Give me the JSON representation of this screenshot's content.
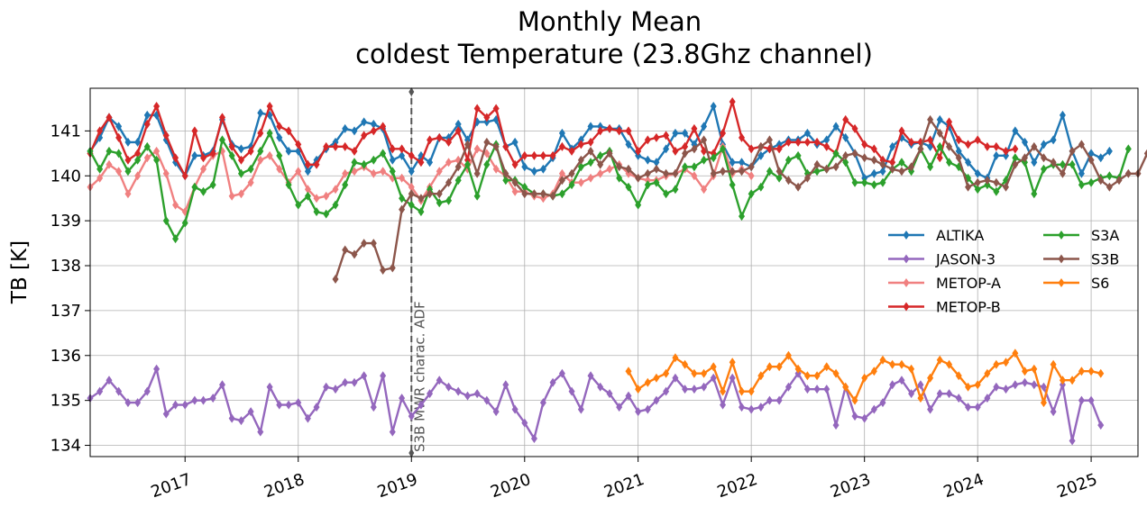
{
  "chart_data": {
    "type": "line",
    "title": [
      "Monthly Mean",
      "coldest Temperature (23.8Ghz channel)"
    ],
    "xlabel": "",
    "ylabel": "TB [K]",
    "ylim": [
      133.75,
      141.95
    ],
    "xlim": [
      "2016-03-01",
      "2025-06-01"
    ],
    "grid": true,
    "yticks": [
      134,
      135,
      136,
      137,
      138,
      139,
      140,
      141
    ],
    "xticks": [
      "2017",
      "2018",
      "2019",
      "2020",
      "2021",
      "2022",
      "2023",
      "2024",
      "2025"
    ],
    "legend": {
      "placement": "right",
      "columns": 2
    },
    "annotation": {
      "label": "S3B MWR charac. ADF",
      "x": "2019-01-01"
    },
    "series": [
      {
        "name": "ALTIKA",
        "color": "#1f77b4",
        "marker": "diamond",
        "start": "2016-03",
        "values": [
          140.55,
          140.85,
          141.3,
          141.1,
          140.75,
          140.75,
          141.35,
          141.35,
          140.8,
          140.3,
          140.0,
          140.45,
          140.45,
          140.55,
          141.25,
          140.7,
          140.6,
          140.65,
          141.4,
          141.35,
          140.85,
          140.55,
          140.55,
          140.1,
          140.35,
          140.6,
          140.75,
          141.05,
          141.0,
          141.2,
          141.15,
          141.05,
          140.35,
          140.45,
          140.1,
          140.45,
          140.3,
          140.85,
          140.85,
          141.15,
          140.8,
          141.2,
          141.2,
          141.25,
          140.65,
          140.75,
          140.2,
          140.1,
          140.15,
          140.4,
          140.95,
          140.6,
          140.8,
          141.1,
          141.1,
          141.05,
          141.05,
          140.7,
          140.45,
          140.35,
          140.3,
          140.6,
          140.95,
          140.95,
          140.7,
          141.1,
          141.55,
          140.7,
          140.3,
          140.3,
          140.2,
          140.45,
          140.6,
          140.7,
          140.8,
          140.8,
          140.95,
          140.7,
          140.8,
          141.1,
          140.85,
          140.5,
          139.95,
          140.05,
          140.1,
          140.65,
          140.85,
          140.7,
          140.75,
          140.65,
          141.25,
          141.1,
          140.55,
          140.3,
          140.05,
          139.95,
          140.45,
          140.45,
          141.0,
          140.75,
          140.3,
          140.7,
          140.8,
          141.35,
          140.55,
          140.05,
          140.5,
          140.4,
          140.55
        ]
      },
      {
        "name": "JASON-3",
        "color": "#9467bd",
        "marker": "diamond",
        "start": "2016-03",
        "values": [
          135.05,
          135.2,
          135.45,
          135.2,
          134.95,
          134.95,
          135.2,
          135.7,
          134.7,
          134.9,
          134.9,
          135.0,
          135.0,
          135.05,
          135.35,
          134.6,
          134.55,
          134.75,
          134.3,
          135.3,
          134.9,
          134.9,
          134.95,
          134.6,
          134.85,
          135.3,
          135.25,
          135.4,
          135.4,
          135.55,
          134.85,
          135.55,
          134.3,
          135.05,
          134.65,
          134.9,
          135.15,
          135.45,
          135.3,
          135.2,
          135.1,
          135.15,
          135.0,
          134.75,
          135.35,
          134.8,
          134.5,
          134.15,
          134.95,
          135.4,
          135.6,
          135.2,
          134.8,
          135.55,
          135.3,
          135.15,
          134.85,
          135.1,
          134.75,
          134.8,
          135.0,
          135.2,
          135.5,
          135.25,
          135.25,
          135.3,
          135.5,
          134.9,
          135.5,
          134.85,
          134.8,
          134.85,
          135.0,
          135.0,
          135.3,
          135.6,
          135.25,
          135.25,
          135.25,
          134.45,
          135.3,
          134.65,
          134.6,
          134.8,
          134.95,
          135.35,
          135.45,
          135.15,
          135.35,
          134.8,
          135.15,
          135.15,
          135.05,
          134.85,
          134.85,
          135.05,
          135.3,
          135.25,
          135.35,
          135.4,
          135.35,
          135.3,
          134.75,
          135.35,
          134.1,
          135.0,
          135.0,
          134.45
        ]
      },
      {
        "name": "METOP-A",
        "color": "#f08080",
        "marker": "diamond",
        "start": "2016-03",
        "values": [
          139.75,
          139.95,
          140.25,
          140.1,
          139.6,
          140.0,
          140.4,
          140.55,
          140.05,
          139.35,
          139.2,
          139.75,
          140.15,
          140.45,
          140.55,
          139.55,
          139.6,
          139.85,
          140.35,
          140.45,
          140.15,
          139.85,
          140.1,
          139.7,
          139.5,
          139.55,
          139.7,
          140.05,
          140.1,
          140.2,
          140.05,
          140.1,
          139.95,
          139.95,
          139.75,
          139.45,
          139.75,
          140.1,
          140.3,
          140.35,
          140.15,
          140.6,
          140.5,
          140.15,
          140.0,
          139.65,
          139.65,
          139.55,
          139.5,
          139.6,
          140.05,
          139.85,
          139.85,
          139.95,
          140.05,
          140.15,
          140.25,
          140.05,
          139.95,
          139.9,
          139.9,
          140.0,
          140.05,
          140.15,
          140.0,
          139.7,
          140.0,
          140.65,
          140.05,
          140.15,
          140.0
        ]
      },
      {
        "name": "METOP-B",
        "color": "#d62728",
        "marker": "diamond",
        "start": "2016-03",
        "values": [
          140.5,
          141.0,
          141.3,
          140.85,
          140.35,
          140.5,
          141.15,
          141.55,
          140.9,
          140.4,
          140.0,
          141.0,
          140.4,
          140.5,
          141.3,
          140.65,
          140.35,
          140.55,
          140.95,
          141.55,
          141.1,
          141.0,
          140.7,
          140.25,
          140.25,
          140.65,
          140.65,
          140.65,
          140.55,
          140.9,
          141.0,
          141.1,
          140.6,
          140.6,
          140.45,
          140.3,
          140.8,
          140.85,
          140.75,
          141.0,
          140.35,
          141.5,
          141.3,
          141.5,
          140.65,
          140.25,
          140.45,
          140.45,
          140.45,
          140.45,
          140.65,
          140.55,
          140.7,
          140.75,
          141.0,
          141.05,
          141.0,
          141.0,
          140.55,
          140.8,
          140.85,
          140.9,
          140.55,
          140.65,
          141.05,
          140.55,
          140.5,
          140.95,
          141.65,
          140.85,
          140.6,
          140.65,
          140.6,
          140.6,
          140.75,
          140.75,
          140.75,
          140.75,
          140.65,
          140.5,
          141.25,
          141.05,
          140.7,
          140.6,
          140.35,
          140.3,
          141.0,
          140.75,
          140.75,
          140.8,
          140.4,
          141.2,
          140.8,
          140.7,
          140.8,
          140.65,
          140.65,
          140.55,
          140.6
        ]
      },
      {
        "name": "S3A",
        "color": "#2ca02c",
        "marker": "diamond",
        "start": "2016-03",
        "values": [
          140.55,
          140.15,
          140.55,
          140.5,
          140.1,
          140.35,
          140.65,
          140.35,
          139.0,
          138.6,
          138.95,
          139.75,
          139.65,
          139.8,
          140.8,
          140.45,
          140.05,
          140.15,
          140.55,
          140.95,
          140.45,
          139.8,
          139.35,
          139.55,
          139.2,
          139.15,
          139.35,
          139.8,
          140.3,
          140.25,
          140.35,
          140.5,
          140.1,
          139.5,
          139.35,
          139.2,
          139.7,
          139.4,
          139.45,
          139.9,
          140.25,
          139.55,
          140.25,
          140.7,
          139.9,
          139.9,
          139.75,
          139.6,
          139.6,
          139.55,
          139.6,
          139.8,
          140.2,
          140.3,
          140.45,
          140.55,
          139.95,
          139.75,
          139.35,
          139.8,
          139.85,
          139.6,
          139.7,
          140.2,
          140.2,
          140.35,
          140.4,
          140.6,
          139.8,
          139.1,
          139.6,
          139.75,
          140.1,
          139.95,
          140.35,
          140.45,
          140.05,
          140.1,
          140.15,
          140.5,
          140.3,
          139.85,
          139.85,
          139.8,
          139.85,
          140.15,
          140.3,
          140.1,
          140.6,
          140.2,
          140.65,
          140.3,
          140.2,
          139.95,
          139.7,
          139.8,
          139.65,
          139.9,
          140.4,
          140.3,
          139.6,
          140.15,
          140.25,
          140.25,
          140.25,
          139.8,
          139.85,
          139.95,
          140.0,
          139.95,
          140.6
        ]
      },
      {
        "name": "S3B",
        "color": "#8c564b",
        "marker": "diamond",
        "start": "2018-05",
        "values": [
          137.7,
          138.35,
          138.25,
          138.5,
          138.5,
          137.9,
          137.95,
          139.25,
          139.6,
          139.5,
          139.6,
          139.6,
          139.85,
          140.2,
          140.7,
          140.05,
          140.75,
          140.65,
          140.05,
          139.85,
          139.6,
          139.6,
          139.6,
          139.55,
          139.9,
          140.05,
          140.35,
          140.55,
          140.25,
          140.5,
          140.2,
          140.15,
          139.95,
          140.05,
          140.15,
          140.05,
          140.05,
          140.5,
          140.6,
          140.8,
          140.05,
          140.1,
          140.1,
          140.1,
          140.2,
          140.65,
          140.8,
          140.1,
          139.9,
          139.75,
          139.95,
          140.25,
          140.15,
          140.2,
          140.45,
          140.5,
          140.4,
          140.35,
          140.25,
          140.15,
          140.1,
          140.2,
          140.6,
          141.25,
          140.95,
          140.65,
          140.4,
          139.75,
          139.85,
          139.9,
          139.85,
          139.75,
          140.25,
          140.4,
          140.65,
          140.4,
          140.3,
          140.05,
          140.55,
          140.7,
          140.35,
          139.9,
          139.75,
          139.9,
          140.05,
          140.05,
          140.5,
          140.4,
          139.95,
          140.3,
          140.5,
          140.75,
          140.25,
          139.95,
          139.9,
          139.95,
          140.4,
          140.25,
          139.95,
          140.6
        ]
      },
      {
        "name": "S6",
        "color": "#ff7f0e",
        "marker": "diamond",
        "start": "2020-12",
        "values": [
          135.65,
          135.25,
          135.4,
          135.5,
          135.6,
          135.95,
          135.8,
          135.6,
          135.6,
          135.75,
          135.2,
          135.85,
          135.2,
          135.2,
          135.55,
          135.75,
          135.75,
          136.0,
          135.7,
          135.55,
          135.55,
          135.75,
          135.6,
          135.3,
          135.0,
          135.5,
          135.65,
          135.9,
          135.8,
          135.8,
          135.7,
          135.05,
          135.5,
          135.9,
          135.8,
          135.55,
          135.3,
          135.35,
          135.6,
          135.8,
          135.85,
          136.05,
          135.65,
          135.7,
          134.95,
          135.8,
          135.45,
          135.45,
          135.65,
          135.65,
          135.6
        ]
      }
    ]
  }
}
